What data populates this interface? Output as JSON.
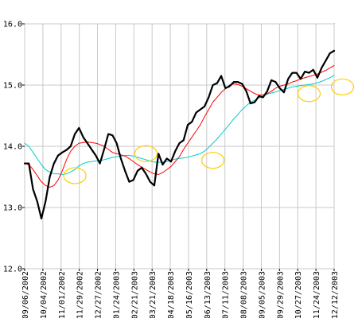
{
  "chart_data": {
    "type": "line",
    "title": "",
    "xlabel": "",
    "ylabel": "",
    "ylim": [
      12.0,
      16.0
    ],
    "yticks": [
      "12.0",
      "13.0",
      "14.0",
      "15.0",
      "16.0"
    ],
    "xticks": [
      "09/06/2002",
      "10/04/2002",
      "11/01/2002",
      "11/29/2002",
      "12/27/2002",
      "01/24/2003",
      "02/21/2003",
      "03/21/2003",
      "04/18/2003",
      "05/16/2003",
      "06/13/2003",
      "07/11/2003",
      "08/08/2003",
      "09/05/2003",
      "09/29/2003",
      "10/27/2003",
      "11/24/2003",
      "12/12/2003"
    ],
    "grid": true,
    "legend": "none",
    "series": [
      {
        "color": "#000000",
        "style": "thick",
        "values": [
          13.72,
          13.72,
          13.3,
          13.1,
          12.82,
          13.1,
          13.5,
          13.72,
          13.85,
          13.9,
          13.94,
          14.0,
          14.2,
          14.3,
          14.15,
          14.05,
          13.95,
          13.85,
          13.72,
          13.95,
          14.2,
          14.18,
          14.05,
          13.8,
          13.6,
          13.42,
          13.45,
          13.6,
          13.65,
          13.55,
          13.42,
          13.36,
          13.88,
          13.7,
          13.8,
          13.75,
          13.92,
          14.05,
          14.1,
          14.35,
          14.4,
          14.55,
          14.6,
          14.65,
          14.8,
          15.0,
          15.03,
          15.15,
          14.95,
          14.98,
          15.05,
          15.05,
          15.02,
          14.9,
          14.7,
          14.72,
          14.82,
          14.8,
          14.9,
          15.08,
          15.05,
          14.95,
          14.88,
          15.1,
          15.2,
          15.2,
          15.1,
          15.22,
          15.2,
          15.25,
          15.12,
          15.28,
          15.4,
          15.52,
          15.56
        ]
      },
      {
        "color": "#ff0000",
        "style": "thin",
        "values": [
          13.72,
          13.7,
          13.62,
          13.52,
          13.42,
          13.36,
          13.33,
          13.36,
          13.45,
          13.6,
          13.78,
          13.92,
          14.0,
          14.05,
          14.06,
          14.07,
          14.06,
          14.05,
          14.03,
          14.0,
          13.95,
          13.9,
          13.88,
          13.86,
          13.84,
          13.8,
          13.75,
          13.7,
          13.66,
          13.62,
          13.58,
          13.55,
          13.54,
          13.57,
          13.62,
          13.67,
          13.75,
          13.83,
          13.95,
          14.05,
          14.15,
          14.25,
          14.35,
          14.48,
          14.6,
          14.72,
          14.8,
          14.88,
          14.94,
          15.0,
          15.02,
          15.01,
          14.98,
          14.94,
          14.9,
          14.86,
          14.84,
          14.84,
          14.86,
          14.9,
          14.95,
          14.98,
          15.0,
          15.02,
          15.05,
          15.07,
          15.1,
          15.12,
          15.14,
          15.16,
          15.18,
          15.21,
          15.24,
          15.28,
          15.32
        ]
      },
      {
        "color": "#00cccc",
        "style": "thin",
        "values": [
          14.05,
          14.0,
          13.9,
          13.8,
          13.7,
          13.62,
          13.58,
          13.55,
          13.55,
          13.54,
          13.55,
          13.58,
          13.62,
          13.68,
          13.72,
          13.74,
          13.75,
          13.76,
          13.77,
          13.78,
          13.8,
          13.82,
          13.83,
          13.84,
          13.85,
          13.85,
          13.84,
          13.82,
          13.8,
          13.78,
          13.76,
          13.74,
          13.74,
          13.74,
          13.75,
          13.77,
          13.79,
          13.8,
          13.81,
          13.82,
          13.84,
          13.86,
          13.88,
          13.92,
          13.98,
          14.05,
          14.12,
          14.2,
          14.28,
          14.36,
          14.45,
          14.52,
          14.6,
          14.66,
          14.72,
          14.75,
          14.79,
          14.82,
          14.85,
          14.87,
          14.89,
          14.91,
          14.93,
          14.95,
          14.97,
          14.98,
          14.99,
          15.0,
          15.01,
          15.02,
          15.04,
          15.06,
          15.09,
          15.12,
          15.16
        ]
      }
    ],
    "annotations": {
      "color": "#ffcc00",
      "ellipses": [
        {
          "x_index": 12,
          "y": 13.52
        },
        {
          "x_index": 29,
          "y": 13.88
        },
        {
          "x_index": 45,
          "y": 13.77
        },
        {
          "x_index": 68,
          "y": 14.86
        },
        {
          "x_index": 76,
          "y": 14.97
        }
      ]
    }
  }
}
